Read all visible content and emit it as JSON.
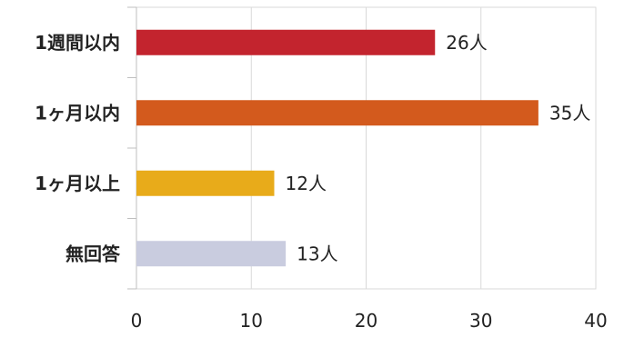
{
  "chart_data": {
    "type": "bar",
    "orientation": "horizontal",
    "title": "",
    "xlabel": "",
    "ylabel": "",
    "categories": [
      "1週間以内",
      "1ヶ月以内",
      "1ヶ月以上",
      "無回答"
    ],
    "values": [
      26,
      35,
      12,
      13
    ],
    "data_labels": [
      "26人",
      "35人",
      "12人",
      "13人"
    ],
    "colors": [
      "#c3242e",
      "#d35a1d",
      "#e8ab1a",
      "#c9ccdf"
    ],
    "xlim": [
      0,
      40
    ],
    "xticks": [
      0,
      10,
      20,
      30,
      40
    ],
    "grid": true,
    "legend": "none"
  }
}
